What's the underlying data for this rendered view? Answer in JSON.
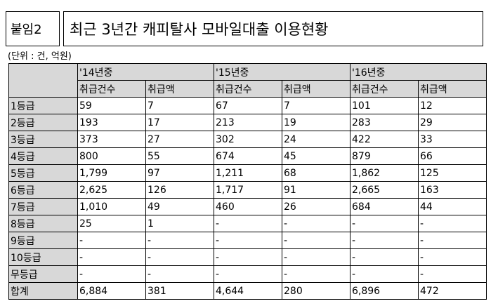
{
  "label": "붙임2",
  "title": "최근 3년간 캐피탈사 모바일대출 이용현황",
  "unit": "(단위 : 건, 억원)",
  "years": [
    "'14년중",
    "'15년중",
    "'16년중"
  ],
  "subheaders": [
    "취급건수",
    "취급액",
    "취급건수",
    "취급액",
    "취급건수",
    "취급액"
  ],
  "rows": [
    {
      "grade": "1등급",
      "values": [
        "59",
        "7",
        "67",
        "7",
        "101",
        "12"
      ]
    },
    {
      "grade": "2등급",
      "values": [
        "193",
        "17",
        "213",
        "19",
        "283",
        "29"
      ]
    },
    {
      "grade": "3등급",
      "values": [
        "373",
        "27",
        "302",
        "24",
        "422",
        "33"
      ]
    },
    {
      "grade": "4등급",
      "values": [
        "800",
        "55",
        "674",
        "45",
        "879",
        "66"
      ]
    },
    {
      "grade": "5등급",
      "values": [
        "1,799",
        "97",
        "1,211",
        "68",
        "1,862",
        "125"
      ]
    },
    {
      "grade": "6등급",
      "values": [
        "2,625",
        "126",
        "1,717",
        "91",
        "2,665",
        "163"
      ]
    },
    {
      "grade": "7등급",
      "values": [
        "1,010",
        "49",
        "460",
        "26",
        "684",
        "44"
      ]
    },
    {
      "grade": "8등급",
      "values": [
        "25",
        "1",
        "-",
        "-",
        "-",
        "-"
      ]
    },
    {
      "grade": "9등급",
      "values": [
        "-",
        "-",
        "-",
        "-",
        "-",
        "-"
      ]
    },
    {
      "grade": "10등급",
      "values": [
        "-",
        "-",
        "-",
        "-",
        "-",
        "-"
      ]
    },
    {
      "grade": "무등급",
      "values": [
        "-",
        "-",
        "-",
        "-",
        "-",
        "-"
      ]
    },
    {
      "grade": "합계",
      "values": [
        "6,884",
        "381",
        "4,644",
        "280",
        "6,896",
        "472"
      ]
    }
  ]
}
